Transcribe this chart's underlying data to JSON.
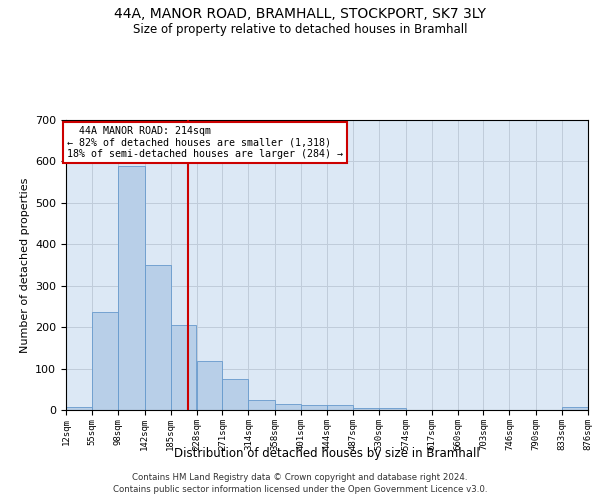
{
  "title": "44A, MANOR ROAD, BRAMHALL, STOCKPORT, SK7 3LY",
  "subtitle": "Size of property relative to detached houses in Bramhall",
  "xlabel": "Distribution of detached houses by size in Bramhall",
  "ylabel": "Number of detached properties",
  "footnote1": "Contains HM Land Registry data © Crown copyright and database right 2024.",
  "footnote2": "Contains public sector information licensed under the Open Government Licence v3.0.",
  "annotation_line1": "44A MANOR ROAD: 214sqm",
  "annotation_line2": "← 82% of detached houses are smaller (1,318)",
  "annotation_line3": "18% of semi-detached houses are larger (284) →",
  "property_size": 214,
  "vline_color": "#cc0000",
  "bar_color": "#b8cfe8",
  "bar_edge_color": "#6699cc",
  "annotation_box_color": "#cc0000",
  "bin_edges": [
    12,
    55,
    98,
    142,
    185,
    228,
    271,
    314,
    358,
    401,
    444,
    487,
    530,
    574,
    617,
    660,
    703,
    746,
    790,
    833,
    876
  ],
  "bar_heights": [
    8,
    237,
    590,
    350,
    204,
    118,
    74,
    25,
    15,
    11,
    11,
    5,
    5,
    0,
    0,
    0,
    0,
    0,
    0,
    8
  ],
  "ylim": [
    0,
    700
  ],
  "yticks": [
    0,
    100,
    200,
    300,
    400,
    500,
    600,
    700
  ],
  "background_color": "#ffffff",
  "axes_background": "#dce8f5",
  "grid_color": "#c0ccda"
}
